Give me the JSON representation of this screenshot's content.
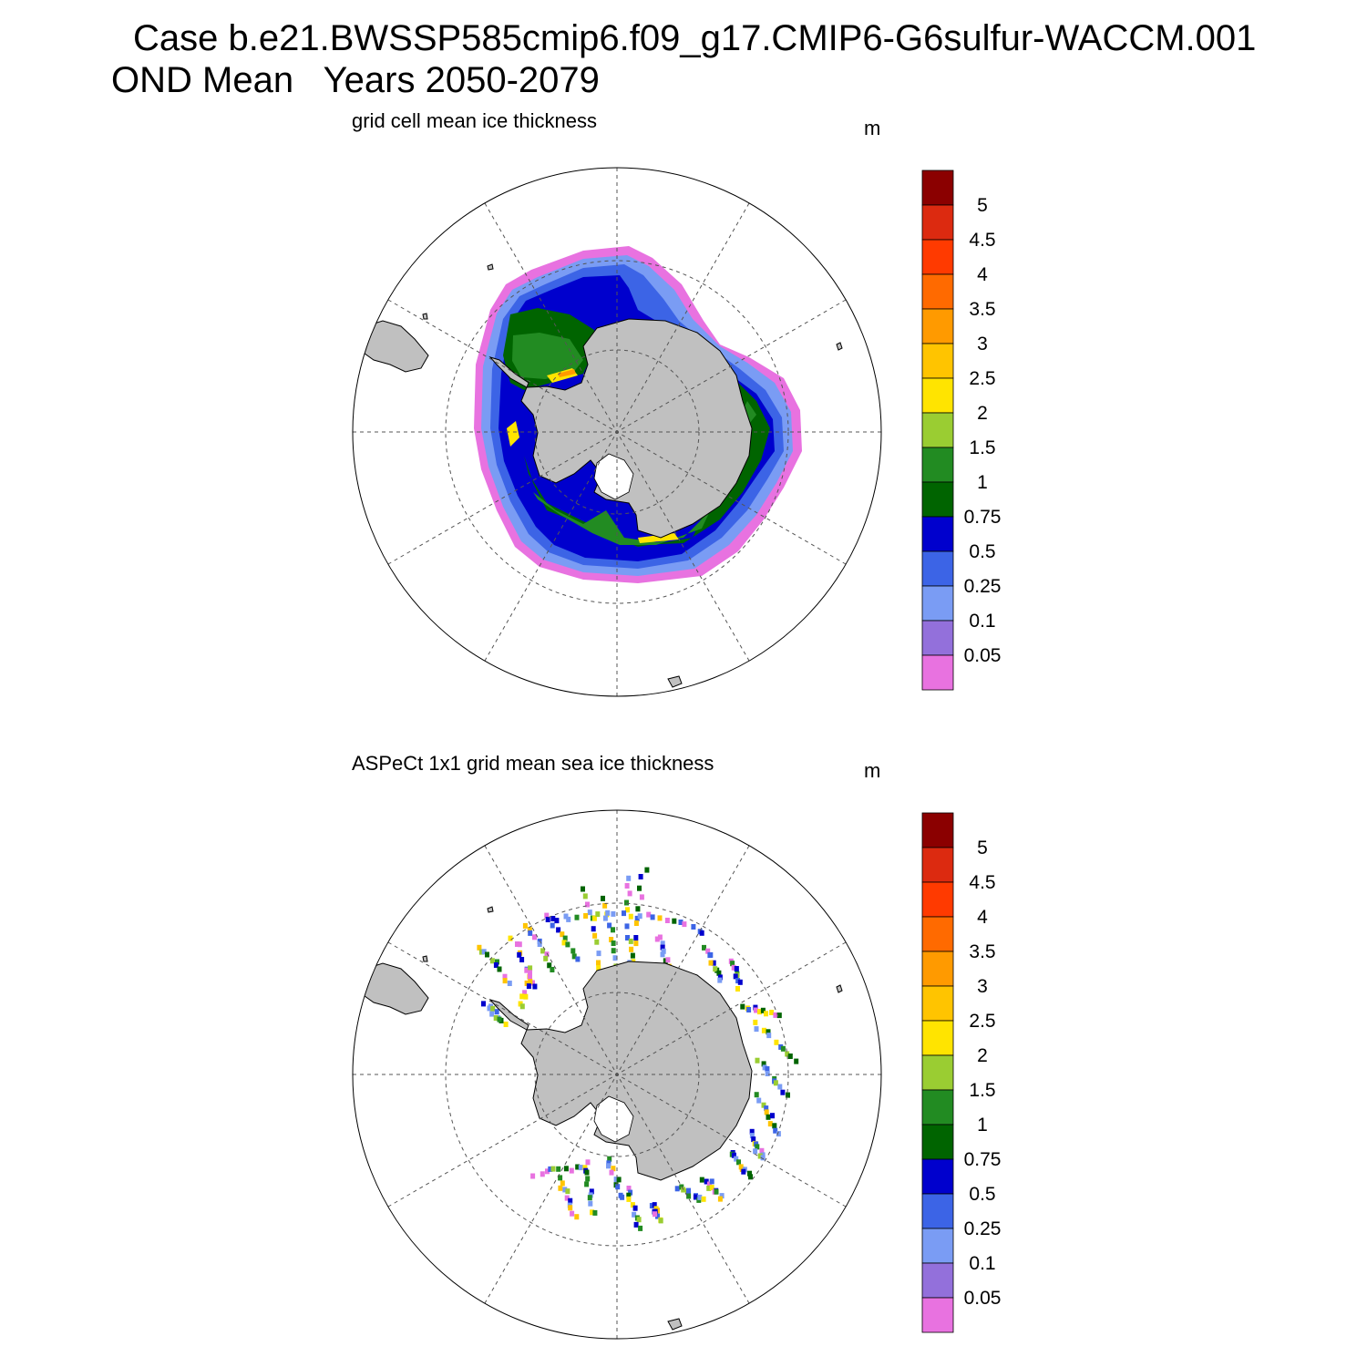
{
  "header": {
    "line1": "Case b.e21.BWSSP585cmip6.f09_g17.CMIP6-G6sulfur-WACCM.001",
    "line2": "OND Mean   Years 2050-2079"
  },
  "panels": [
    {
      "id": "model",
      "title": "grid cell mean ice thickness",
      "unit": "m"
    },
    {
      "id": "obs",
      "title": "ASPeCt 1x1 grid mean sea ice thickness",
      "unit": "m"
    }
  ],
  "colorbar": {
    "labels": [
      "5",
      "4.5",
      "4",
      "3.5",
      "3",
      "2.5",
      "2",
      "1.5",
      "1",
      "0.75",
      "0.5",
      "0.25",
      "0.1",
      "0.05"
    ],
    "colors": [
      "#8b0000",
      "#dc2a10",
      "#ff3a00",
      "#ff6a00",
      "#ff9a00",
      "#ffc400",
      "#ffe400",
      "#9acd32",
      "#228b22",
      "#006400",
      "#0000cd",
      "#3c64e6",
      "#7a9cf4",
      "#9370db",
      "#e872e0"
    ]
  },
  "map_colors": {
    "land": "#c0c0c0",
    "ocean": "#ffffff",
    "grid": "#555555"
  }
}
